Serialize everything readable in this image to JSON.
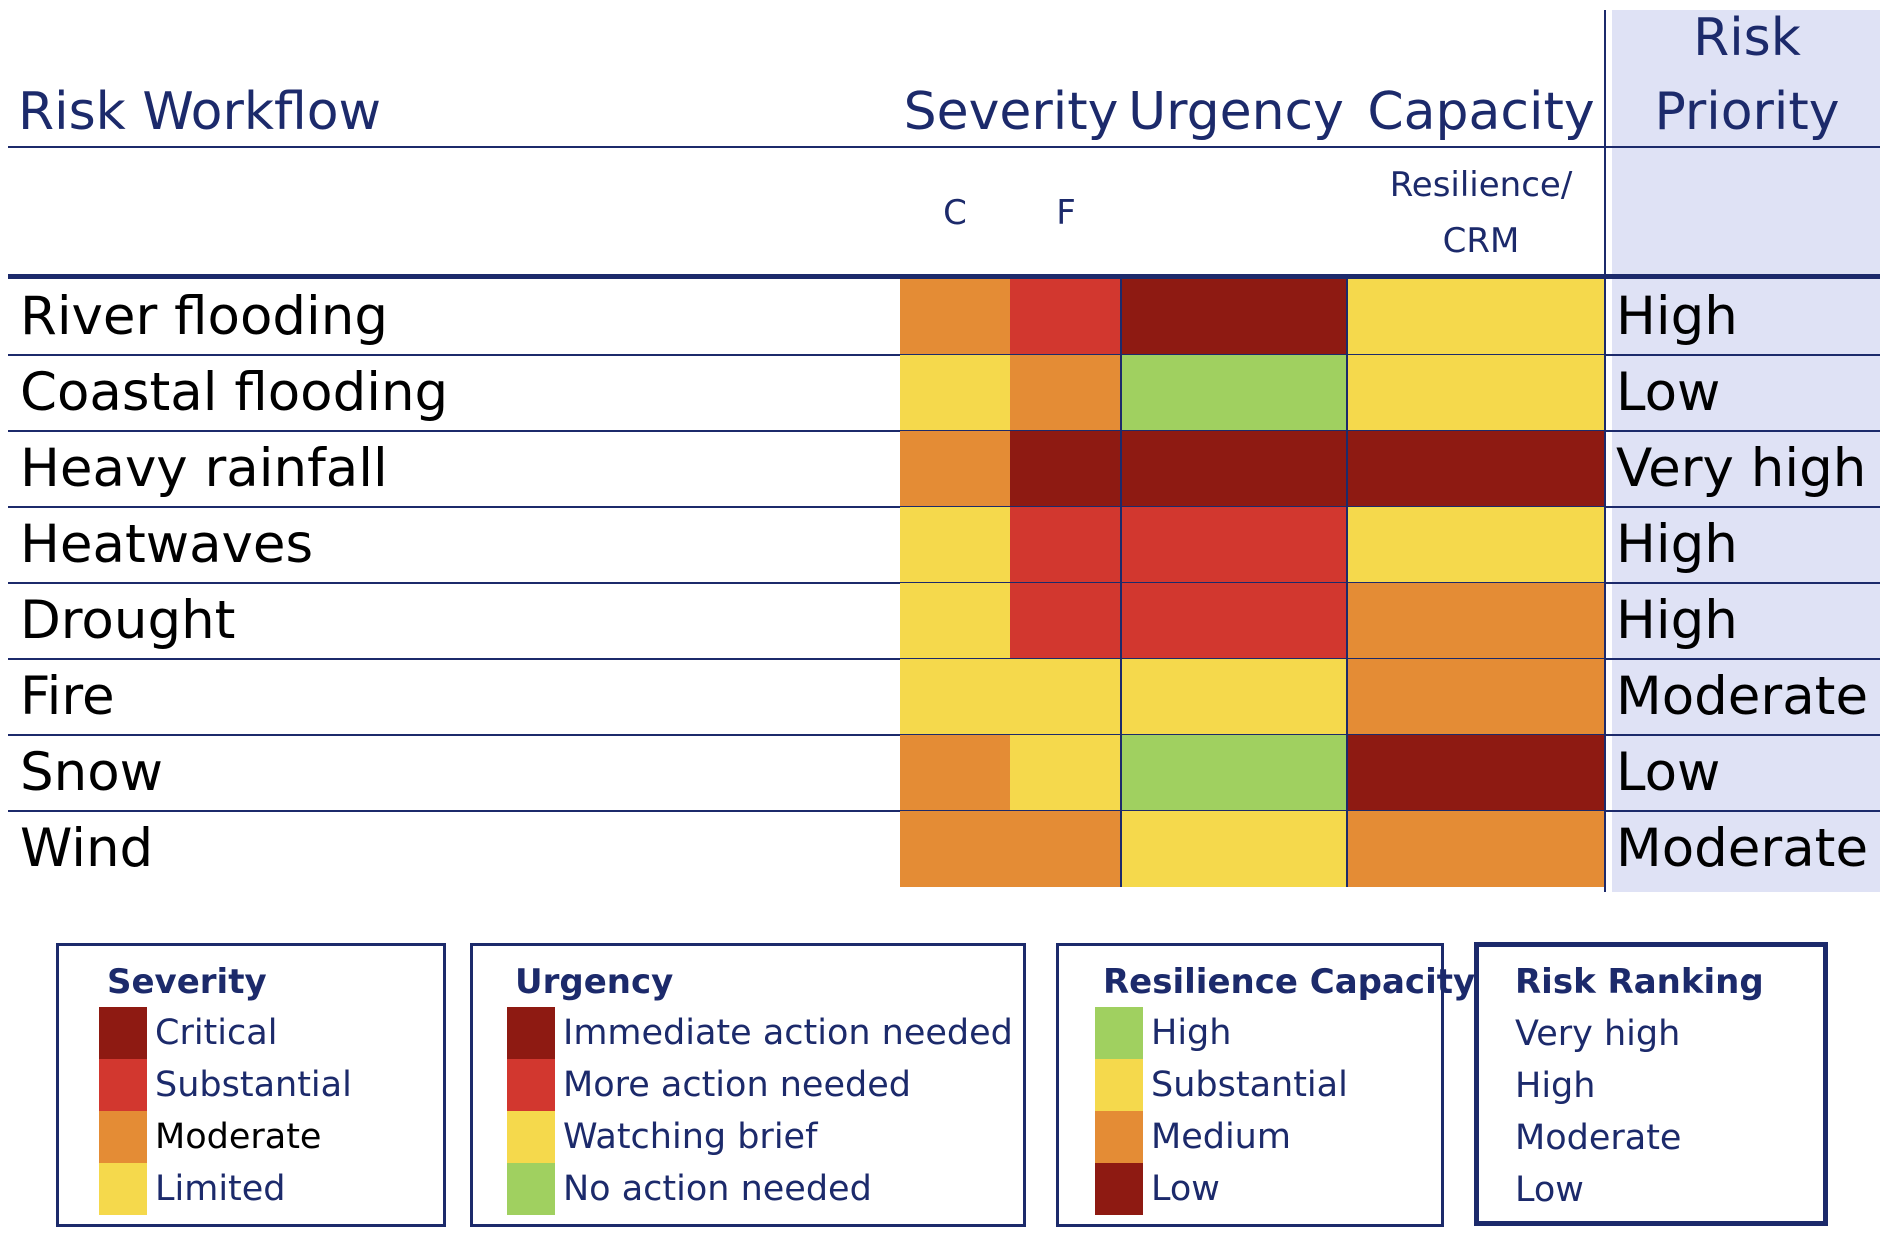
{
  "colors": {
    "critical": "#8e1a12",
    "substantial": "#d2372f",
    "moderate": "#e48c35",
    "limited": "#f5d94c",
    "green": "#a0d060",
    "navy": "#1c2a6b",
    "priority_bg": "#dfe2f5"
  },
  "header": {
    "title": "Risk Workflow",
    "severity": "Severity",
    "urgency": "Urgency",
    "capacity": "Capacity",
    "priority_line1": "Risk",
    "priority_line2": "Priority",
    "sub_c": "C",
    "sub_f": "F",
    "sub_resilience_line1": "Resilience/",
    "sub_resilience_line2": "CRM"
  },
  "chart_data": {
    "type": "heatmap",
    "columns": [
      "C",
      "F",
      "Urgency",
      "Resilience/ CRM"
    ],
    "rows": [
      {
        "name": "River flooding",
        "cells": [
          "moderate",
          "substantial",
          "critical",
          "limited"
        ],
        "priority": "High"
      },
      {
        "name": "Coastal flooding",
        "cells": [
          "limited",
          "moderate",
          "green",
          "limited"
        ],
        "priority": "Low"
      },
      {
        "name": "Heavy rainfall",
        "cells": [
          "moderate",
          "critical",
          "critical",
          "critical"
        ],
        "priority": "Very high"
      },
      {
        "name": "Heatwaves",
        "cells": [
          "limited",
          "substantial",
          "substantial",
          "limited"
        ],
        "priority": "High"
      },
      {
        "name": "Drought",
        "cells": [
          "limited",
          "substantial",
          "substantial",
          "moderate"
        ],
        "priority": "High"
      },
      {
        "name": "Fire",
        "cells": [
          "limited",
          "limited",
          "limited",
          "moderate"
        ],
        "priority": "Moderate"
      },
      {
        "name": "Snow",
        "cells": [
          "moderate",
          "limited",
          "green",
          "critical"
        ],
        "priority": "Low"
      },
      {
        "name": "Wind",
        "cells": [
          "moderate",
          "moderate",
          "limited",
          "moderate"
        ],
        "priority": "Moderate"
      }
    ]
  },
  "legends": {
    "severity": {
      "title": "Severity",
      "items": [
        {
          "label": "Critical",
          "color": "#8e1a12"
        },
        {
          "label": "Substantial",
          "color": "#d2372f"
        },
        {
          "label": "Moderate",
          "color": "#e48c35"
        },
        {
          "label": "Limited",
          "color": "#f5d94c"
        }
      ]
    },
    "urgency": {
      "title": "Urgency",
      "items": [
        {
          "label": "Immediate action needed",
          "color": "#8e1a12"
        },
        {
          "label": "More action needed",
          "color": "#d2372f"
        },
        {
          "label": "Watching brief",
          "color": "#f5d94c"
        },
        {
          "label": "No action needed",
          "color": "#a0d060"
        }
      ]
    },
    "resilience": {
      "title": "Resilience Capacity",
      "items": [
        {
          "label": "High",
          "color": "#a0d060"
        },
        {
          "label": "Substantial",
          "color": "#f5d94c"
        },
        {
          "label": "Medium",
          "color": "#e48c35"
        },
        {
          "label": "Low",
          "color": "#8e1a12"
        }
      ]
    },
    "ranking": {
      "title": "Risk Ranking",
      "items": [
        {
          "label": "Very high"
        },
        {
          "label": "High"
        },
        {
          "label": "Moderate"
        },
        {
          "label": "Low"
        }
      ]
    }
  }
}
